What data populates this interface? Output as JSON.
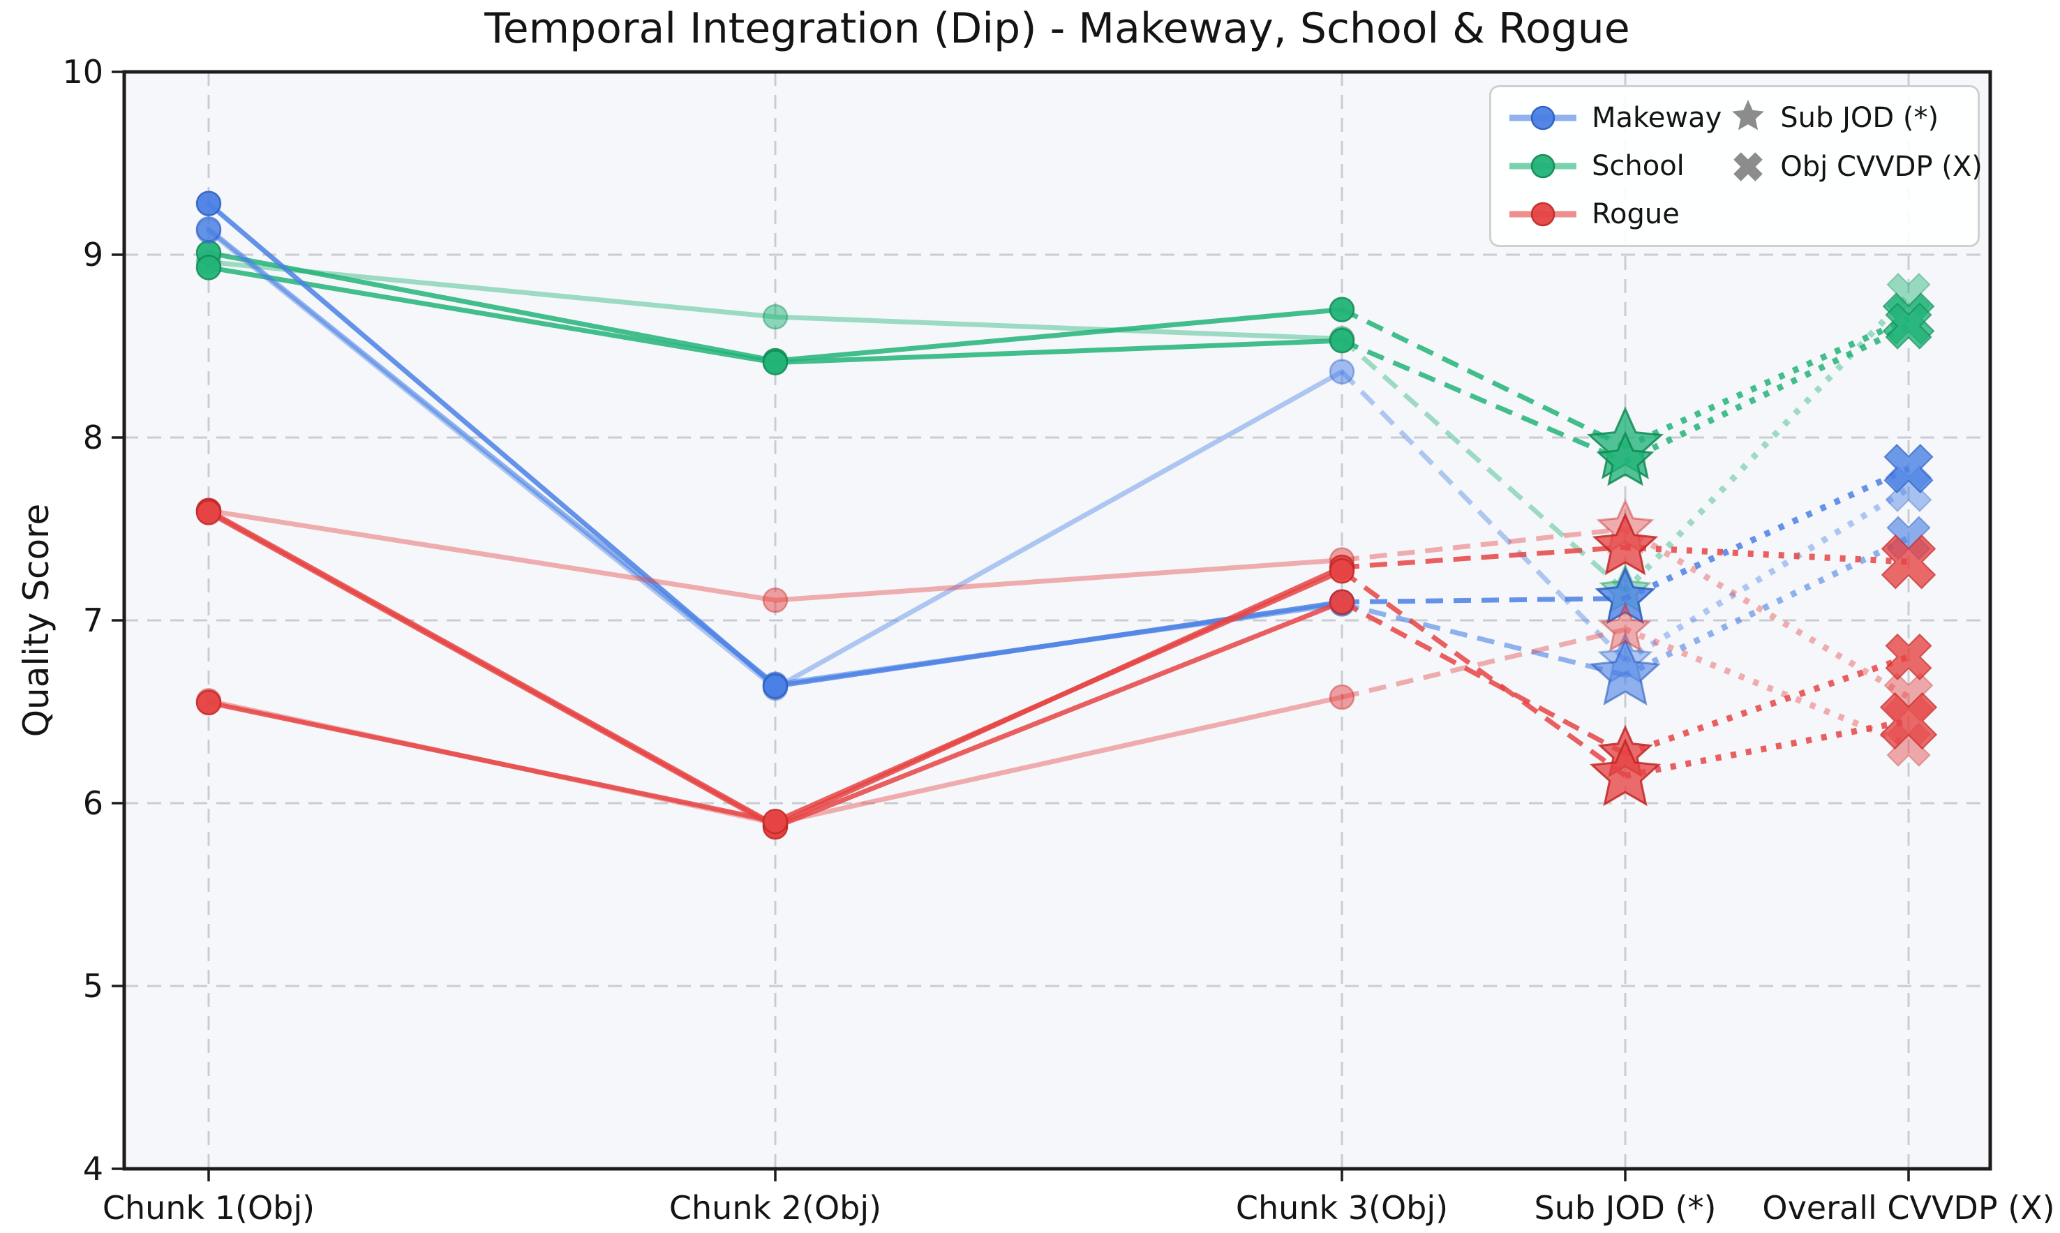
{
  "title": "Temporal Integration (Dip) - Makeway, School & Rogue",
  "ylabel": "Quality Score",
  "legend": {
    "series": [
      {
        "label": "Makeway",
        "color": "#4a80e4"
      },
      {
        "label": "School",
        "color": "#22b378"
      },
      {
        "label": "Rogue",
        "color": "#e64444"
      }
    ],
    "markers": [
      {
        "label": "Sub JOD (*)",
        "shape": "star-icon",
        "color": "#8c8c8c"
      },
      {
        "label": "Obj CVVDP (X)",
        "shape": "x-icon",
        "color": "#8c8c8c"
      }
    ]
  },
  "chart_data": {
    "type": "line",
    "title": "Temporal Integration (Dip) - Makeway, School & Rogue",
    "xlabel": "",
    "ylabel": "Quality Score",
    "categories": [
      "Chunk 1(Obj)",
      "Chunk 2(Obj)",
      "Chunk 3(Obj)",
      "Sub JOD (*)",
      "Overall CVVDP (X)"
    ],
    "x_units": [
      0,
      1,
      2,
      2.5,
      3
    ],
    "ylim": [
      4,
      10
    ],
    "y_ticks": [
      10,
      9,
      8,
      7,
      6,
      5,
      4
    ],
    "grid": true,
    "grid_color": "#c9cdd3",
    "plot_bg": "#f5f7fa",
    "legend_position": "upper right",
    "segment_styles": {
      "chunks": "solid",
      "to_jod": "dashed",
      "to_cvvdp": "dotted"
    },
    "series": [
      {
        "name": "School",
        "color": "#22b378",
        "edge": "#0f8a52",
        "clips": [
          {
            "shade": "light",
            "values": [
              8.96,
              8.66,
              8.54,
              7.16,
              8.78
            ],
            "star_r": 36,
            "x_r": 32
          },
          {
            "shade": "dark",
            "values": [
              9.01,
              8.42,
              8.7,
              7.95,
              8.65
            ],
            "star_r": 54,
            "x_r": 38
          },
          {
            "shade": "dark",
            "values": [
              8.93,
              8.41,
              8.53,
              7.87,
              8.61
            ],
            "star_r": 40,
            "x_r": 34
          }
        ]
      },
      {
        "name": "Makeway",
        "color": "#4a80e4",
        "edge": "#2a5cc0",
        "clips": [
          {
            "shade": "light",
            "values": [
              9.13,
              6.63,
              8.36,
              6.78,
              7.72
            ],
            "star_r": 38,
            "x_r": 34
          },
          {
            "shade": "medium",
            "values": [
              9.14,
              6.65,
              7.09,
              6.7,
              7.45
            ],
            "star_r": 50,
            "x_r": 32
          },
          {
            "shade": "dark",
            "values": [
              9.28,
              6.64,
              7.1,
              7.12,
              7.83
            ],
            "star_r": 42,
            "x_r": 36
          }
        ]
      },
      {
        "name": "Rogue",
        "color": "#e64444",
        "edge": "#c22626",
        "clips": [
          {
            "shade": "light",
            "values": [
              7.6,
              7.11,
              7.33,
              7.5,
              6.58
            ],
            "star_r": 40,
            "x_r": 36
          },
          {
            "shade": "light",
            "values": [
              6.56,
              5.89,
              6.58,
              6.95,
              6.32
            ],
            "star_r": 36,
            "x_r": 32
          },
          {
            "shade": "dark",
            "values": [
              7.6,
              5.88,
              7.29,
              7.4,
              7.32
            ],
            "star_r": 46,
            "x_r": 40
          },
          {
            "shade": "dark",
            "values": [
              7.59,
              5.87,
              7.1,
              6.27,
              6.8
            ],
            "star_r": 38,
            "x_r": 34
          },
          {
            "shade": "dark",
            "values": [
              6.55,
              5.9,
              7.27,
              6.15,
              6.45
            ],
            "star_r": 50,
            "x_r": 42
          }
        ]
      }
    ]
  }
}
